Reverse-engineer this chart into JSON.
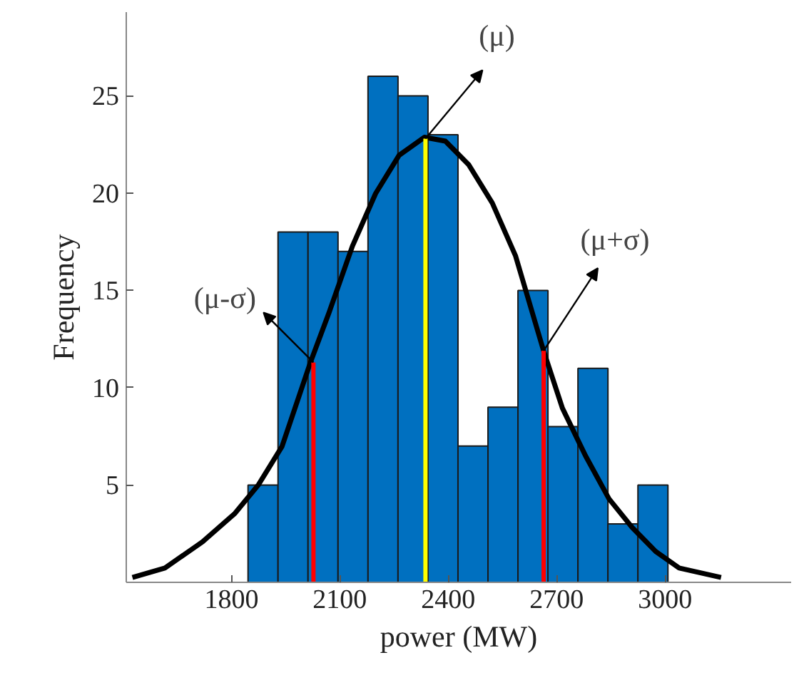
{
  "chart_data": {
    "type": "histogram",
    "xlabel": "power (MW)",
    "ylabel": "Frequency",
    "bins": [
      1846,
      1929,
      2012,
      2095,
      2178,
      2261,
      2344,
      2427,
      2510,
      2593,
      2676,
      2759,
      2842,
      2925,
      3008
    ],
    "values": [
      5,
      18,
      18,
      17,
      26,
      25,
      23,
      7,
      9,
      15,
      8,
      11,
      3,
      5
    ],
    "color": "#0070c0",
    "series": [
      {
        "type": "line",
        "color": "#000000",
        "x": [
          1526,
          1616,
          1720,
          1810,
          1875,
          1940,
          2018,
          2070,
          2135,
          2199,
          2264,
          2334,
          2392,
          2457,
          2522,
          2586,
          2664,
          2716,
          2780,
          2845,
          2909,
          2974,
          3039,
          3155
        ],
        "values": [
          0.25,
          0.74,
          2.08,
          3.55,
          5.02,
          6.98,
          11.27,
          13.85,
          17.28,
          19.98,
          21.94,
          22.87,
          22.67,
          21.45,
          19.49,
          16.79,
          11.89,
          8.95,
          6.5,
          4.29,
          2.82,
          1.59,
          0.74,
          0.25
        ]
      },
      {
        "type": "line",
        "color": "#ff0000",
        "x": [
          2027,
          2027
        ],
        "values": [
          0,
          11.3
        ]
      },
      {
        "type": "line",
        "color": "#ffff00",
        "x": [
          2337,
          2337
        ],
        "values": [
          0,
          22.8
        ]
      },
      {
        "type": "line",
        "color": "#ff0000",
        "x": [
          2664,
          2664
        ],
        "values": [
          0,
          11.9
        ]
      }
    ],
    "annotations": [
      {
        "text": "(μ-σ)",
        "x": 2027,
        "y": 11.3
      },
      {
        "text": "(μ)",
        "x": 2337,
        "y": 22.8
      },
      {
        "text": "(μ+σ)",
        "x": 2664,
        "y": 11.9
      }
    ],
    "xlim": [
      1509,
      3349
    ],
    "ylim": [
      0,
      29.3
    ],
    "xticks": [
      1800,
      2100,
      2400,
      2700,
      3000
    ],
    "yticks": [
      5,
      10,
      15,
      20,
      25
    ],
    "grid": false
  }
}
